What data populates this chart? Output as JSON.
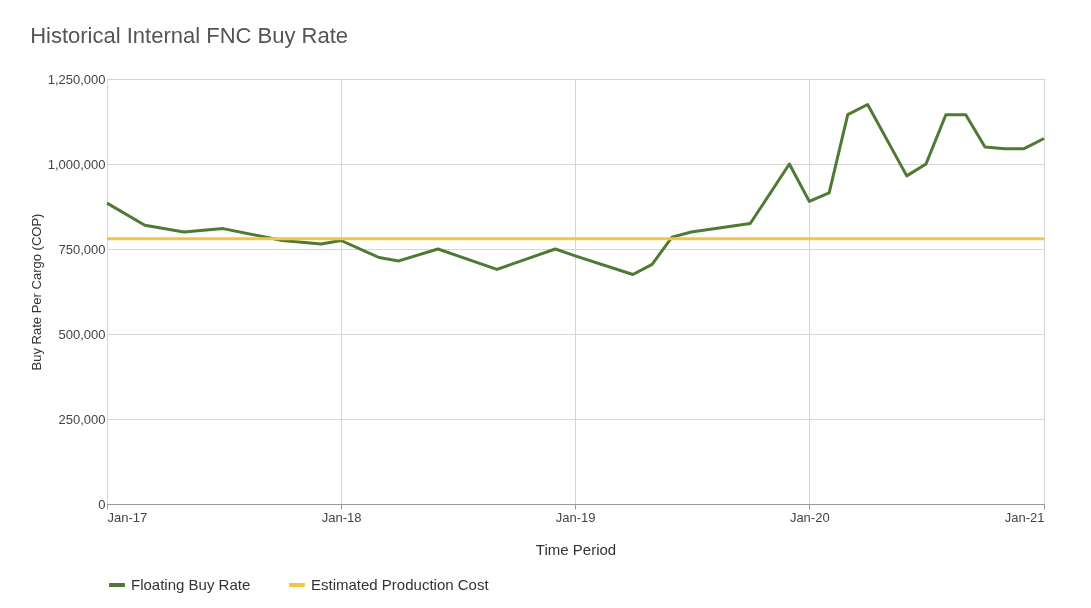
{
  "chart_data": {
    "type": "line",
    "title": "Historical Internal FNC Buy Rate",
    "xlabel": "Time Period",
    "ylabel": "Buy Rate Per Cargo (COP)",
    "series": [
      {
        "name": "Floating Buy Rate",
        "color": "#4f7a34",
        "x": [
          "2017-01",
          "2017-03",
          "2017-05",
          "2017-07",
          "2017-10",
          "2017-12",
          "2018-01",
          "2018-03",
          "2018-04",
          "2018-06",
          "2018-09",
          "2018-12",
          "2019-01",
          "2019-04",
          "2019-05",
          "2019-06",
          "2019-07",
          "2019-10",
          "2019-12",
          "2020-01",
          "2020-02",
          "2020-03",
          "2020-04",
          "2020-06",
          "2020-07",
          "2020-08",
          "2020-09",
          "2020-10",
          "2020-11",
          "2020-12",
          "2021-01"
        ],
        "values": [
          885000,
          820000,
          800000,
          810000,
          775000,
          765000,
          775000,
          725000,
          715000,
          750000,
          690000,
          750000,
          730000,
          675000,
          705000,
          785000,
          800000,
          825000,
          1000000,
          890000,
          915000,
          1145000,
          1175000,
          965000,
          1000000,
          1145000,
          1145000,
          1050000,
          1045000,
          1045000,
          1075000
        ]
      },
      {
        "name": "Estimated Production Cost",
        "color": "#f2c545",
        "x": [
          "2017-01",
          "2021-01"
        ],
        "values": [
          780000,
          780000
        ]
      }
    ],
    "xlim": [
      "2017-01",
      "2021-01"
    ],
    "xticks": [
      {
        "value": "2017-01",
        "label": "Jan-17"
      },
      {
        "value": "2018-01",
        "label": "Jan-18"
      },
      {
        "value": "2019-01",
        "label": "Jan-19"
      },
      {
        "value": "2020-01",
        "label": "Jan-20"
      },
      {
        "value": "2021-01",
        "label": "Jan-21"
      }
    ],
    "ylim": [
      0,
      1250000
    ],
    "yticks": [
      0,
      {
        "value": 250000,
        "label": "250,000"
      },
      {
        "value": 500000,
        "label": "500,000"
      },
      {
        "value": 750000,
        "label": "750,000"
      },
      {
        "value": 1000000,
        "label": "1,000,000"
      },
      {
        "value": 1250000,
        "label": "1,250,000"
      }
    ],
    "grid": true,
    "legend": "bottom",
    "marker": "none",
    "line_style": "solid"
  }
}
